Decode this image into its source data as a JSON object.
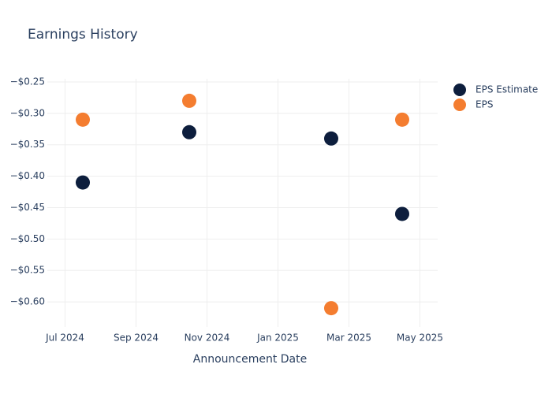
{
  "chart_data": {
    "type": "scatter",
    "title": "Earnings History",
    "x_label": "Announcement Date",
    "x": [
      "2024-07",
      "2024-10",
      "2025-02",
      "2025-04"
    ],
    "series": [
      {
        "name": "EPS Estimate",
        "color": "#0d1e3d",
        "values": [
          -0.41,
          -0.33,
          -0.34,
          -0.46
        ]
      },
      {
        "name": "EPS",
        "color": "#f47d30",
        "values": [
          -0.31,
          -0.28,
          -0.61,
          -0.31
        ]
      }
    ],
    "xlim": [
      "2024-06",
      "2025-05"
    ],
    "xticks": [
      {
        "value": "2024-07",
        "label": "Jul 2024"
      },
      {
        "value": "2024-09",
        "label": "Sep 2024"
      },
      {
        "value": "2024-11",
        "label": "Nov 2024"
      },
      {
        "value": "2025-01",
        "label": "Jan 2025"
      },
      {
        "value": "2025-03",
        "label": "Mar 2025"
      },
      {
        "value": "2025-05",
        "label": "May 2025"
      }
    ],
    "ylim": [
      -0.64,
      -0.245
    ],
    "yticks": [
      {
        "value": -0.25,
        "label": "−$0.25"
      },
      {
        "value": -0.3,
        "label": "−$0.30"
      },
      {
        "value": -0.35,
        "label": "−$0.35"
      },
      {
        "value": -0.4,
        "label": "−$0.40"
      },
      {
        "value": -0.45,
        "label": "−$0.45"
      },
      {
        "value": -0.5,
        "label": "−$0.50"
      },
      {
        "value": -0.55,
        "label": "−$0.55"
      },
      {
        "value": -0.6,
        "label": "−$0.60"
      }
    ],
    "grid": true,
    "legend_position": "right"
  }
}
